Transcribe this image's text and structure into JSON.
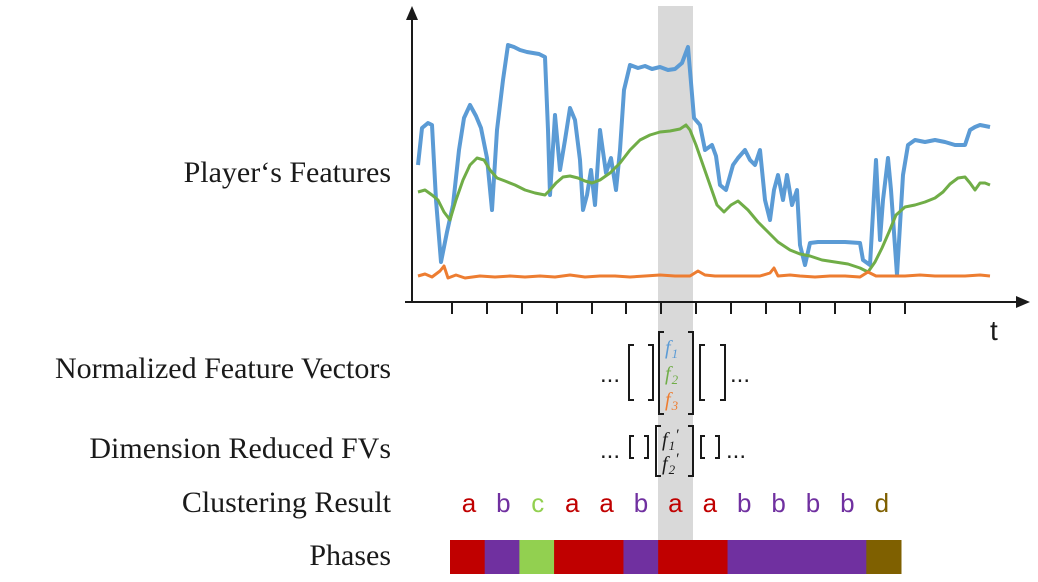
{
  "labels": {
    "features": "Player‘s Features",
    "normalized": "Normalized Feature Vectors",
    "reduced": "Dimension Reduced FVs",
    "clustering": "Clustering Result",
    "phases": "Phases"
  },
  "axis": {
    "x_label": "t"
  },
  "ellipsis": "...",
  "vector_symbols": {
    "normalized": [
      {
        "sym": "f",
        "sub": "1",
        "color": "#5b9bd5"
      },
      {
        "sym": "f",
        "sub": "2",
        "color": "#70ad47"
      },
      {
        "sym": "f",
        "sub": "3",
        "color": "#ed7d31"
      }
    ],
    "reduced": [
      {
        "sym": "f",
        "sub": "1",
        "prime": "′",
        "color": "#1a1a1a"
      },
      {
        "sym": "f",
        "sub": "2",
        "prime": "′",
        "color": "#1a1a1a"
      }
    ]
  },
  "clusters": [
    "a",
    "b",
    "c",
    "a",
    "a",
    "b",
    "a",
    "a",
    "b",
    "b",
    "b",
    "b",
    "d"
  ],
  "cluster_colors": {
    "a": "#c00000",
    "b": "#7030a0",
    "c": "#92d050",
    "d": "#7f6000"
  },
  "phases": [
    "a",
    "b",
    "c",
    "a",
    "a",
    "b",
    "a",
    "a",
    "b",
    "b",
    "b",
    "b",
    "d"
  ],
  "series_colors": {
    "f1": "#5b9bd5",
    "f2": "#70ad47",
    "f3": "#ed7d31",
    "highlight": "#d9d9d9"
  }
}
